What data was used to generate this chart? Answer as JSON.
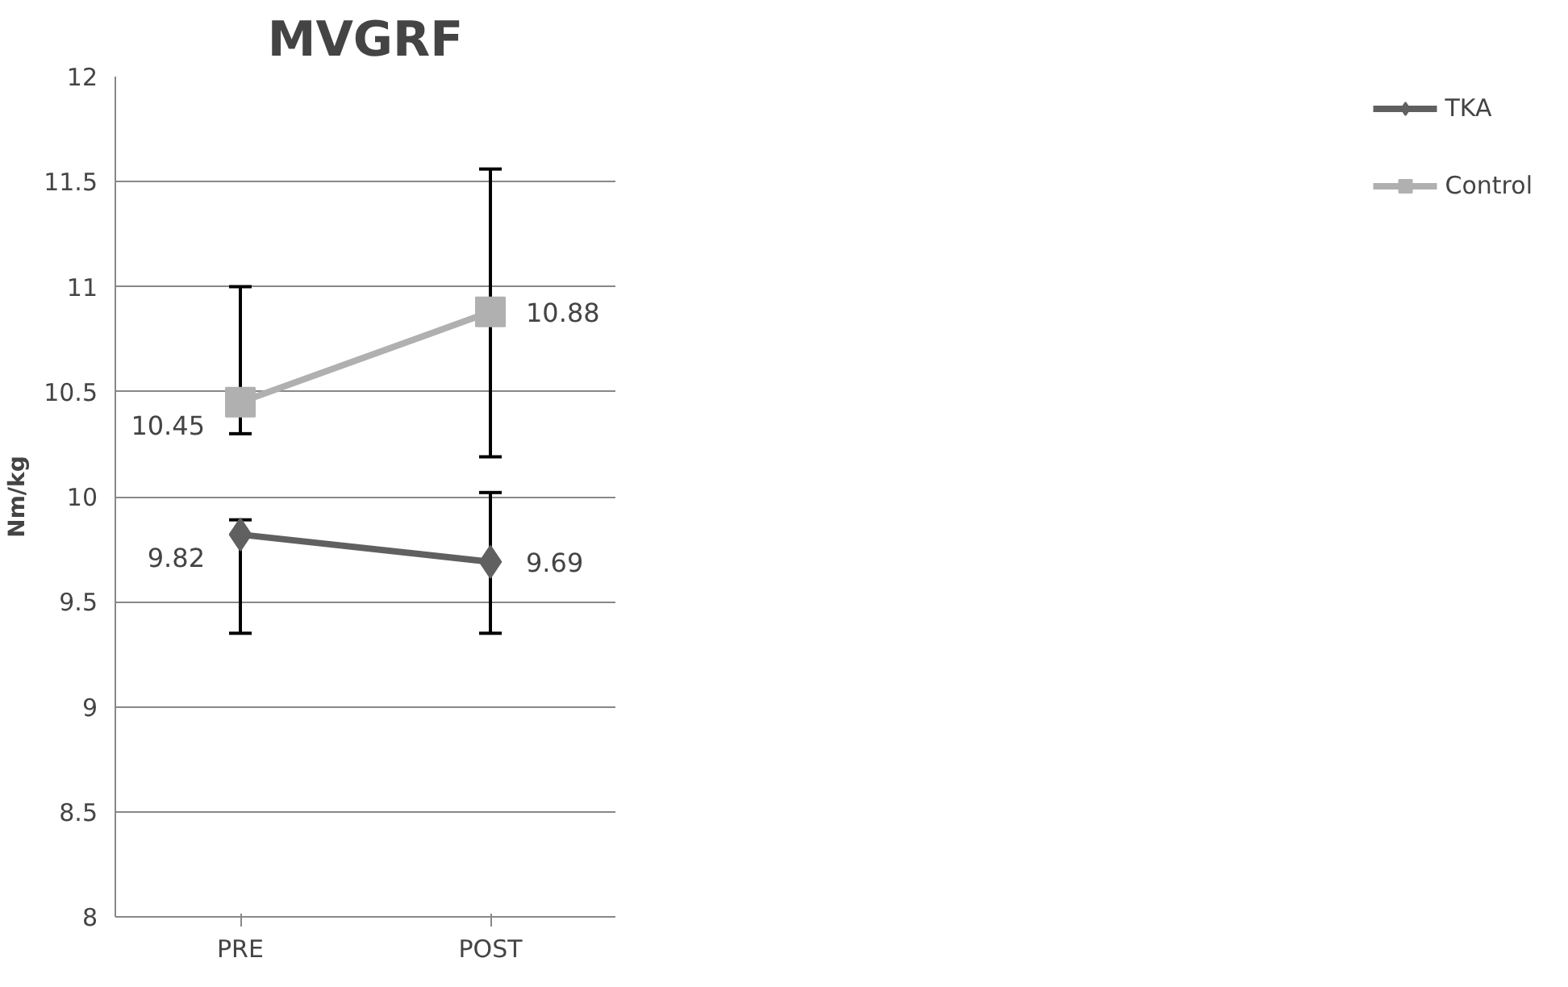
{
  "chart_data": {
    "type": "line",
    "title": "MVGRF",
    "ylabel": "Nm/kg",
    "categories": [
      "PRE",
      "POST"
    ],
    "series": [
      {
        "name": "TKA",
        "color": "#606060",
        "values": [
          9.82,
          9.69
        ],
        "marker": "diamond",
        "errors": [
          [
            9.35,
            9.89
          ],
          [
            9.35,
            10.02
          ]
        ]
      },
      {
        "name": "Control",
        "color": "#b0b0b0",
        "values": [
          10.45,
          10.88
        ],
        "marker": "square",
        "errors": [
          [
            10.3,
            11.0
          ],
          [
            10.19,
            11.56
          ]
        ]
      }
    ],
    "ylim": [
      8,
      12
    ],
    "yticks": [
      8,
      8.5,
      9,
      9.5,
      10,
      10.5,
      11,
      11.5,
      12
    ],
    "grid": "y",
    "legend": "right",
    "data_labels": true
  }
}
